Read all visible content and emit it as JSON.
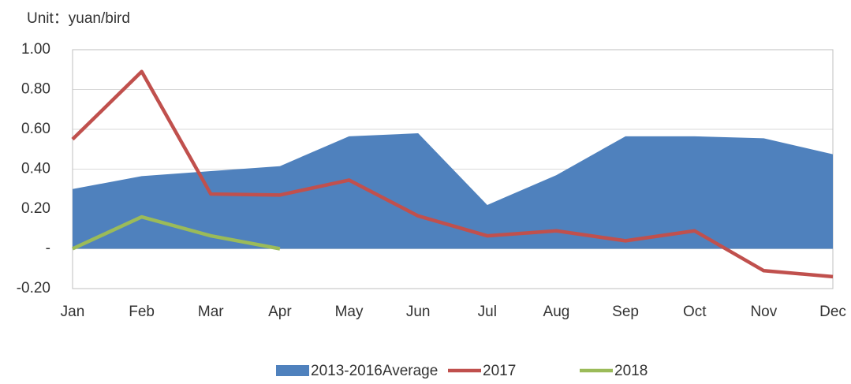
{
  "chart_data": {
    "type": "line",
    "unit_label": "Unit：yuan/bird",
    "categories": [
      "Jan",
      "Feb",
      "Mar",
      "Apr",
      "May",
      "Jun",
      "Jul",
      "Aug",
      "Sep",
      "Oct",
      "Nov",
      "Dec"
    ],
    "series": [
      {
        "name": "2013-2016Average",
        "type": "area",
        "color": "#4f81bd",
        "values": [
          0.3,
          0.365,
          0.39,
          0.415,
          0.565,
          0.58,
          0.22,
          0.37,
          0.565,
          0.565,
          0.555,
          0.475
        ]
      },
      {
        "name": "2017",
        "type": "line",
        "color": "#c0504d",
        "values": [
          0.55,
          0.89,
          0.275,
          0.27,
          0.345,
          0.165,
          0.065,
          0.09,
          0.04,
          0.09,
          -0.11,
          -0.14
        ]
      },
      {
        "name": "2018",
        "type": "line",
        "color": "#9bbb59",
        "values": [
          0.0,
          0.16,
          0.065,
          0.0,
          null,
          null,
          null,
          null,
          null,
          null,
          null,
          null
        ]
      }
    ],
    "ylim": [
      -0.2,
      1.0
    ],
    "yticks": [
      {
        "value": -0.2,
        "label": "-0.20"
      },
      {
        "value": 0,
        "label": "-"
      },
      {
        "value": 0.2,
        "label": "0.20"
      },
      {
        "value": 0.4,
        "label": "0.40"
      },
      {
        "value": 0.6,
        "label": "0.60"
      },
      {
        "value": 0.8,
        "label": "0.80"
      },
      {
        "value": 1.0,
        "label": "1.00"
      }
    ],
    "grid": true,
    "legend_position": "bottom"
  }
}
